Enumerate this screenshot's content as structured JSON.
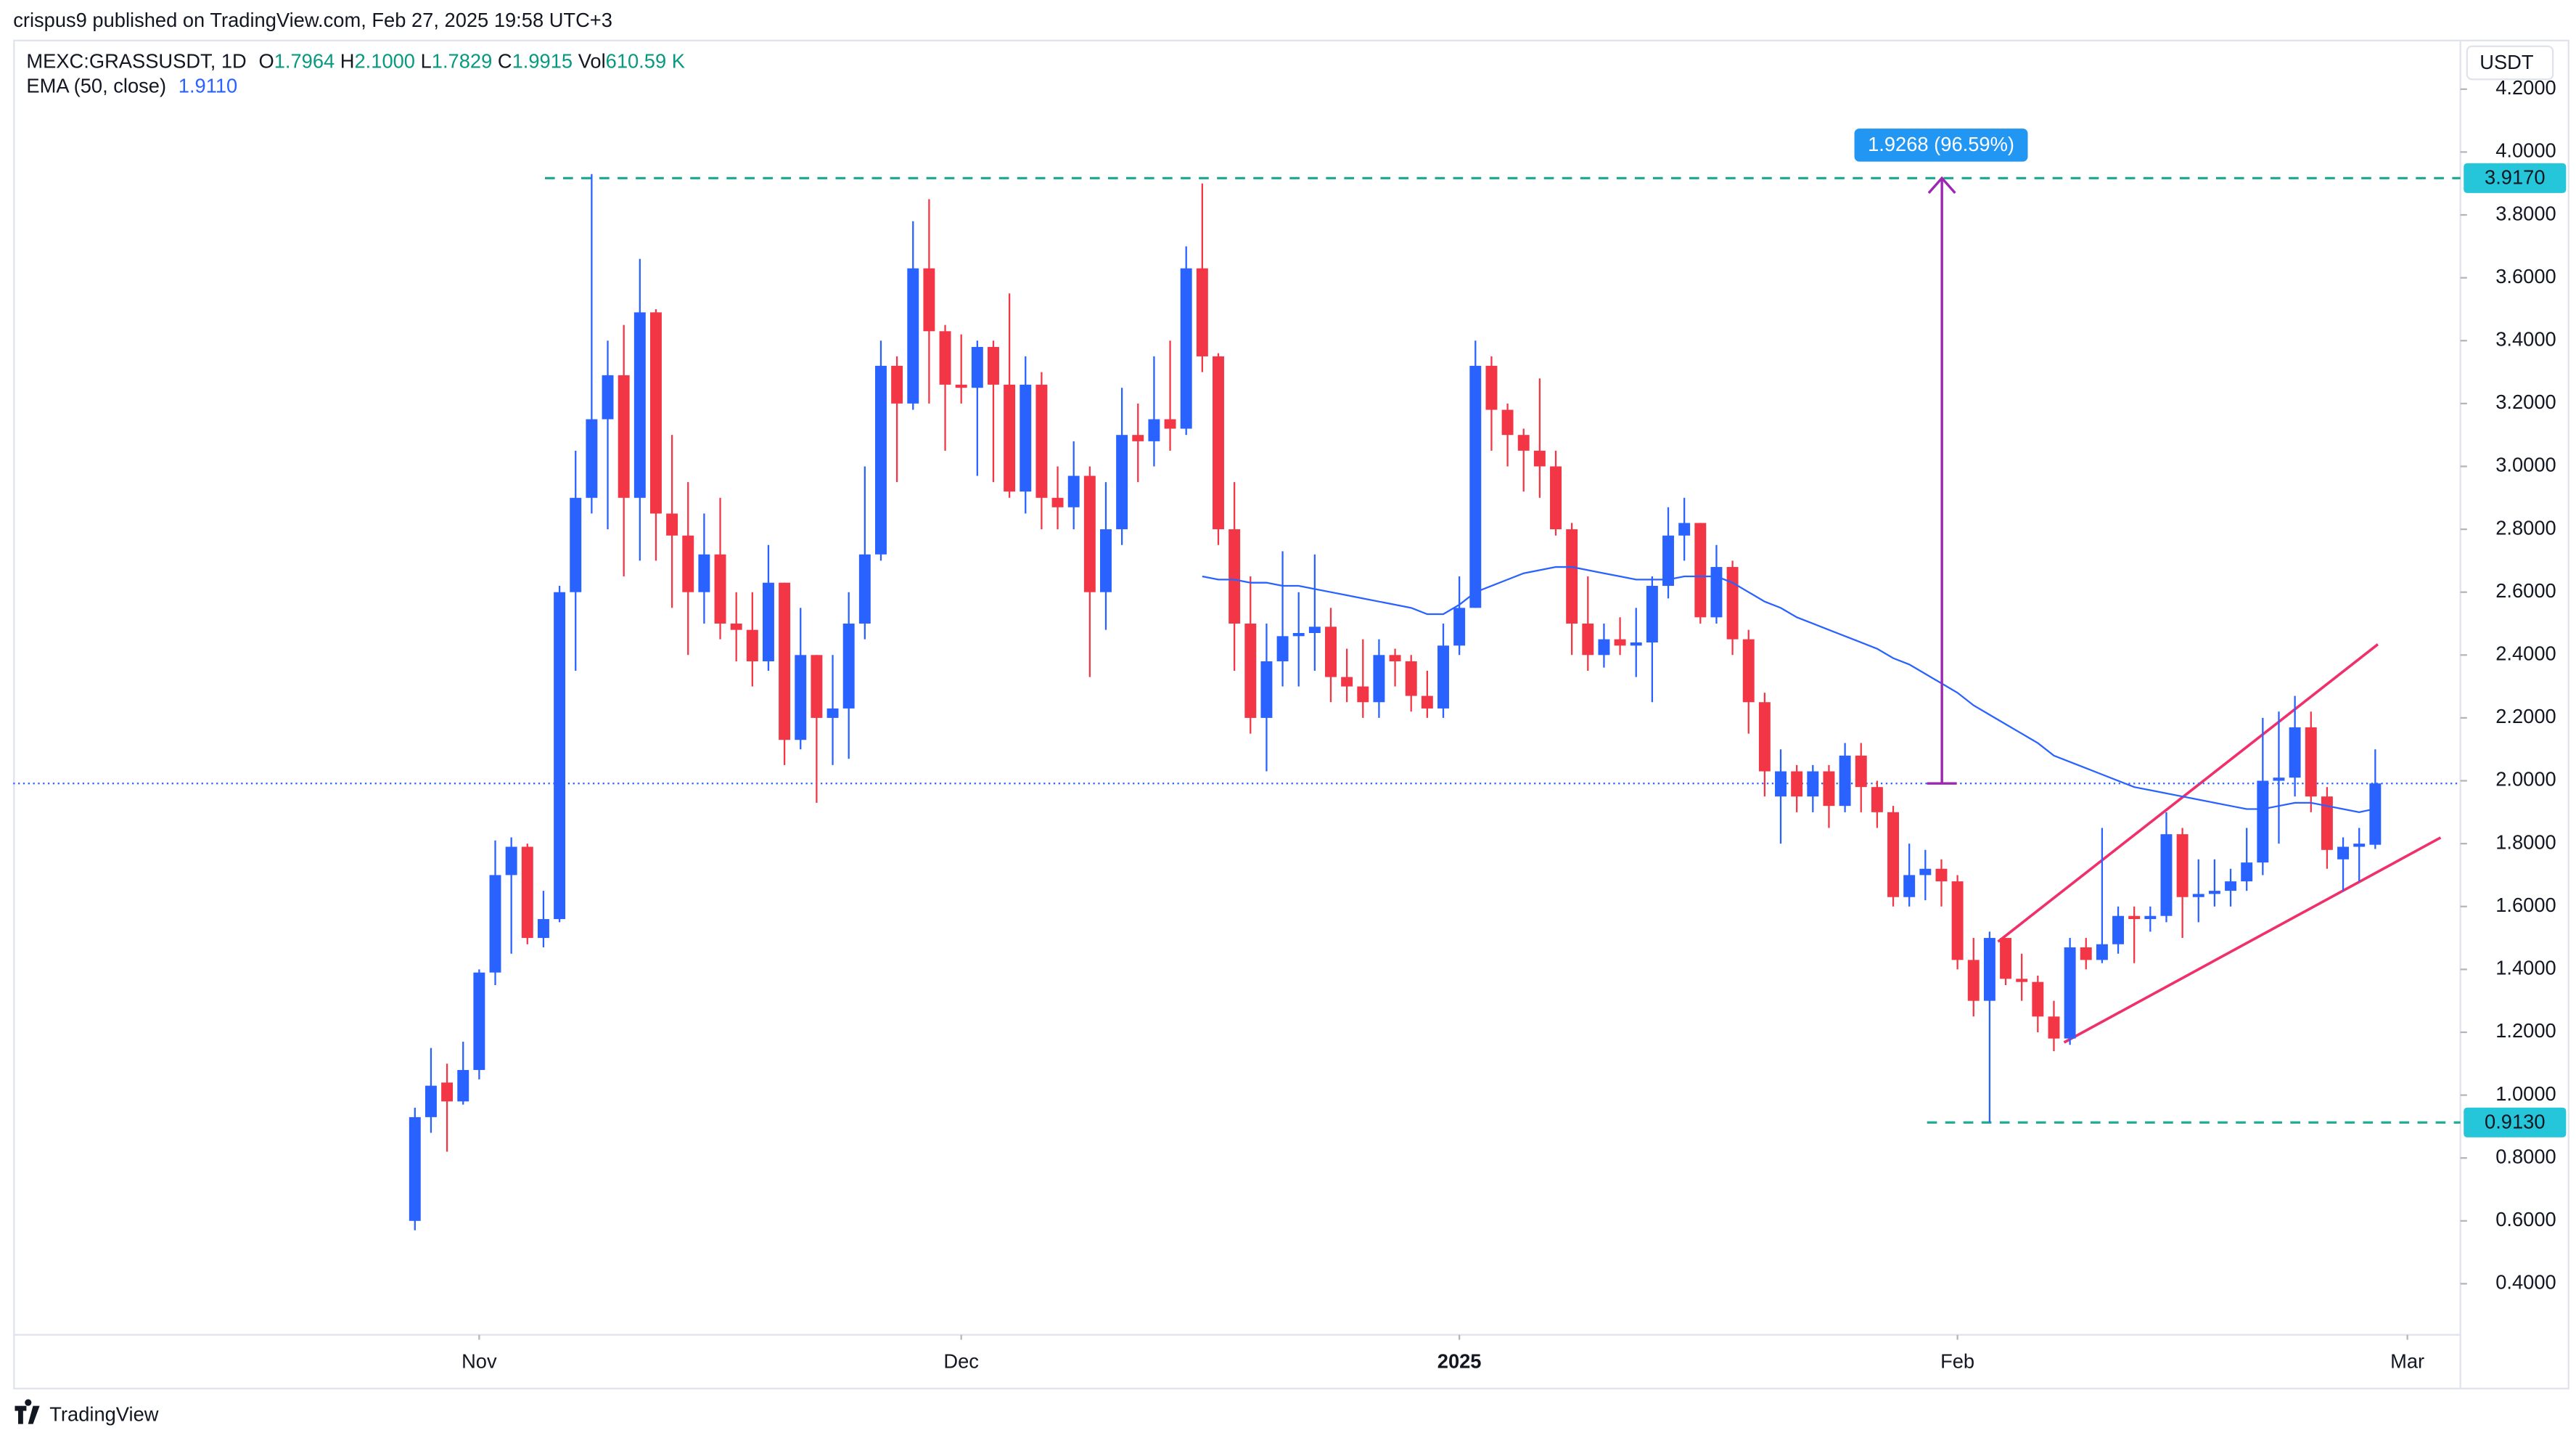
{
  "header": {
    "published": "crispus9 published on TradingView.com, Feb 27, 2025 19:58 UTC+3",
    "symbol": "MEXC:GRASSUSDT, 1D",
    "ohlcv": [
      {
        "key": "O",
        "value": "1.7964"
      },
      {
        "key": "H",
        "value": "2.1000"
      },
      {
        "key": "L",
        "value": "1.7829"
      },
      {
        "key": "C",
        "value": "1.9915"
      },
      {
        "key": "Vol",
        "value": "610.59 K"
      }
    ],
    "indicator": "EMA (50, close)",
    "indicator_value": "1.9110",
    "currency": "USDT"
  },
  "chart_data": {
    "type": "candlestick",
    "up_color": "#2962ff",
    "down_color": "#f23645",
    "open": [
      0.6,
      0.93,
      1.04,
      0.98,
      1.08,
      1.39,
      1.7,
      1.79,
      1.5,
      1.56,
      2.6,
      2.9,
      3.15,
      3.29,
      2.9,
      3.49,
      2.85,
      2.78,
      2.6,
      2.72,
      2.5,
      2.48,
      2.38,
      2.63,
      2.13,
      2.4,
      2.2,
      2.23,
      2.5,
      2.72,
      3.32,
      3.2,
      3.63,
      3.43,
      3.26,
      3.25,
      3.38,
      3.26,
      2.92,
      3.26,
      2.9,
      2.87,
      2.97,
      2.6,
      2.8,
      3.1,
      3.08,
      3.15,
      3.12,
      3.63,
      3.35,
      2.8,
      2.5,
      2.2,
      2.38,
      2.46,
      2.47,
      2.49,
      2.33,
      2.3,
      2.25,
      2.4,
      2.38,
      2.27,
      2.23,
      2.43,
      2.55,
      3.32,
      3.18,
      3.1,
      3.05,
      3.0,
      2.8,
      2.5,
      2.4,
      2.45,
      2.43,
      2.44,
      2.62,
      2.78,
      2.82,
      2.52,
      2.68,
      2.45,
      2.25,
      1.95,
      2.03,
      1.95,
      2.03,
      1.92,
      2.08,
      1.98,
      1.9,
      1.63,
      1.7,
      1.72,
      1.68,
      1.43,
      1.3,
      1.5,
      1.37,
      1.36,
      1.25,
      1.18,
      1.47,
      1.43,
      1.48,
      1.57,
      1.56,
      1.57,
      1.83,
      1.63,
      1.64,
      1.65,
      1.68,
      1.74,
      2.0,
      2.01,
      2.17,
      1.95,
      1.75,
      1.79,
      1.7964
    ],
    "high": [
      0.96,
      1.15,
      1.1,
      1.17,
      1.4,
      1.81,
      1.82,
      1.8,
      1.65,
      2.62,
      3.05,
      3.93,
      3.4,
      3.45,
      3.66,
      3.5,
      3.1,
      2.95,
      2.85,
      2.9,
      2.6,
      2.6,
      2.75,
      2.63,
      2.55,
      2.4,
      2.4,
      2.6,
      3.0,
      3.4,
      3.35,
      3.78,
      3.85,
      3.45,
      3.42,
      3.4,
      3.4,
      3.55,
      3.35,
      3.3,
      3.0,
      3.08,
      3.0,
      2.95,
      3.25,
      3.2,
      3.35,
      3.4,
      3.7,
      3.9,
      3.36,
      2.95,
      2.65,
      2.5,
      2.73,
      2.6,
      2.72,
      2.55,
      2.42,
      2.45,
      2.45,
      2.42,
      2.4,
      2.35,
      2.5,
      2.65,
      3.4,
      3.35,
      3.2,
      3.12,
      3.28,
      3.05,
      2.82,
      2.65,
      2.5,
      2.52,
      2.55,
      2.65,
      2.87,
      2.9,
      2.82,
      2.75,
      2.7,
      2.48,
      2.28,
      2.1,
      2.05,
      2.05,
      2.05,
      2.12,
      2.12,
      2.0,
      1.92,
      1.8,
      1.78,
      1.75,
      1.7,
      1.5,
      1.52,
      1.5,
      1.45,
      1.38,
      1.3,
      1.5,
      1.5,
      1.85,
      1.6,
      1.6,
      1.6,
      1.9,
      1.85,
      1.75,
      1.75,
      1.72,
      1.85,
      2.2,
      2.22,
      2.27,
      2.22,
      1.98,
      1.82,
      1.85,
      2.1
    ],
    "low": [
      0.57,
      0.88,
      0.82,
      0.97,
      1.05,
      1.35,
      1.45,
      1.48,
      1.47,
      1.55,
      2.35,
      2.85,
      2.8,
      2.65,
      2.7,
      2.7,
      2.55,
      2.4,
      2.5,
      2.45,
      2.38,
      2.3,
      2.35,
      2.05,
      2.1,
      1.93,
      2.05,
      2.07,
      2.45,
      2.7,
      2.95,
      3.18,
      3.2,
      3.05,
      3.2,
      2.97,
      2.95,
      2.9,
      2.85,
      2.8,
      2.8,
      2.8,
      2.33,
      2.48,
      2.75,
      2.95,
      3.0,
      3.05,
      3.1,
      3.3,
      2.75,
      2.35,
      2.15,
      2.03,
      2.3,
      2.3,
      2.35,
      2.25,
      2.25,
      2.2,
      2.2,
      2.3,
      2.22,
      2.2,
      2.2,
      2.4,
      2.55,
      3.05,
      3.0,
      2.92,
      2.9,
      2.78,
      2.4,
      2.35,
      2.36,
      2.4,
      2.33,
      2.25,
      2.58,
      2.7,
      2.5,
      2.5,
      2.4,
      2.15,
      1.95,
      1.8,
      1.9,
      1.9,
      1.85,
      1.9,
      1.9,
      1.85,
      1.6,
      1.6,
      1.62,
      1.6,
      1.4,
      1.25,
      0.913,
      1.35,
      1.3,
      1.2,
      1.14,
      1.16,
      1.4,
      1.42,
      1.45,
      1.42,
      1.52,
      1.55,
      1.5,
      1.55,
      1.6,
      1.6,
      1.65,
      1.7,
      1.8,
      1.95,
      1.9,
      1.72,
      1.65,
      1.68,
      1.7829
    ],
    "close": [
      0.93,
      1.03,
      0.98,
      1.08,
      1.39,
      1.7,
      1.79,
      1.5,
      1.56,
      2.6,
      2.9,
      3.15,
      3.29,
      2.9,
      3.49,
      2.85,
      2.78,
      2.6,
      2.72,
      2.5,
      2.48,
      2.38,
      2.63,
      2.13,
      2.4,
      2.2,
      2.23,
      2.5,
      2.72,
      3.32,
      3.2,
      3.63,
      3.43,
      3.26,
      3.25,
      3.38,
      3.26,
      2.92,
      3.26,
      2.9,
      2.87,
      2.97,
      2.6,
      2.8,
      3.1,
      3.08,
      3.15,
      3.12,
      3.63,
      3.35,
      2.8,
      2.5,
      2.2,
      2.38,
      2.46,
      2.47,
      2.49,
      2.33,
      2.3,
      2.25,
      2.4,
      2.38,
      2.27,
      2.23,
      2.43,
      2.55,
      3.32,
      3.18,
      3.1,
      3.05,
      3.0,
      2.8,
      2.5,
      2.4,
      2.45,
      2.43,
      2.44,
      2.62,
      2.78,
      2.82,
      2.52,
      2.68,
      2.45,
      2.25,
      2.03,
      2.03,
      1.95,
      2.03,
      1.92,
      2.08,
      1.98,
      1.9,
      1.63,
      1.7,
      1.72,
      1.68,
      1.43,
      1.3,
      1.5,
      1.37,
      1.36,
      1.25,
      1.18,
      1.47,
      1.43,
      1.48,
      1.57,
      1.56,
      1.57,
      1.83,
      1.63,
      1.64,
      1.65,
      1.68,
      1.74,
      2.0,
      2.01,
      2.17,
      1.95,
      1.78,
      1.79,
      1.8,
      1.9915
    ],
    "ema": {
      "color": "#2962ff",
      "values": [
        null,
        null,
        null,
        null,
        null,
        null,
        null,
        null,
        null,
        null,
        null,
        null,
        null,
        null,
        null,
        null,
        null,
        null,
        null,
        null,
        null,
        null,
        null,
        null,
        null,
        null,
        null,
        null,
        null,
        null,
        null,
        null,
        null,
        null,
        null,
        null,
        null,
        null,
        null,
        null,
        null,
        null,
        null,
        null,
        null,
        null,
        null,
        null,
        null,
        2.65,
        2.64,
        2.64,
        2.63,
        2.63,
        2.62,
        2.62,
        2.61,
        2.6,
        2.59,
        2.58,
        2.57,
        2.56,
        2.55,
        2.53,
        2.53,
        2.56,
        2.6,
        2.62,
        2.64,
        2.66,
        2.67,
        2.68,
        2.68,
        2.67,
        2.66,
        2.65,
        2.64,
        2.64,
        2.64,
        2.65,
        2.65,
        2.65,
        2.63,
        2.6,
        2.57,
        2.55,
        2.52,
        2.5,
        2.48,
        2.46,
        2.44,
        2.42,
        2.39,
        2.37,
        2.34,
        2.31,
        2.28,
        2.24,
        2.21,
        2.18,
        2.15,
        2.12,
        2.08,
        2.06,
        2.04,
        2.02,
        2.0,
        1.98,
        1.97,
        1.96,
        1.95,
        1.94,
        1.93,
        1.92,
        1.91,
        1.91,
        1.92,
        1.93,
        1.93,
        1.92,
        1.91,
        1.9,
        1.911
      ]
    },
    "xlim": [
      -25,
      127.3
    ],
    "xticks": [
      {
        "value": 4,
        "label": "Nov"
      },
      {
        "value": 34,
        "label": "Dec"
      },
      {
        "value": 65,
        "label": "2025"
      },
      {
        "value": 96,
        "label": "Feb"
      },
      {
        "value": 124,
        "label": "Mar"
      }
    ],
    "ylim": [
      0.2375,
      4.3784
    ],
    "yticks": [
      {
        "value": 4.2,
        "label": "4.2000"
      },
      {
        "value": 4.0,
        "label": "4.0000"
      },
      {
        "value": 3.8,
        "label": "3.8000"
      },
      {
        "value": 3.6,
        "label": "3.6000"
      },
      {
        "value": 3.4,
        "label": "3.4000"
      },
      {
        "value": 3.2,
        "label": "3.2000"
      },
      {
        "value": 3.0,
        "label": "3.0000"
      },
      {
        "value": 2.8,
        "label": "2.8000"
      },
      {
        "value": 2.6,
        "label": "2.6000"
      },
      {
        "value": 2.4,
        "label": "2.4000"
      },
      {
        "value": 2.2,
        "label": "2.2000"
      },
      {
        "value": 2.0,
        "label": "2.0000"
      },
      {
        "value": 1.8,
        "label": "1.8000"
      },
      {
        "value": 1.6,
        "label": "1.6000"
      },
      {
        "value": 1.4,
        "label": "1.4000"
      },
      {
        "value": 1.2,
        "label": "1.2000"
      },
      {
        "value": 1.0,
        "label": "1.0000"
      },
      {
        "value": 0.8,
        "label": "0.8000"
      },
      {
        "value": 0.6,
        "label": "0.6000"
      },
      {
        "value": 0.4,
        "label": "0.4000"
      }
    ],
    "grid": false,
    "levels": [
      {
        "value": 3.917,
        "label": "3.9170"
      },
      {
        "value": 0.913,
        "label": "0.9130"
      }
    ],
    "level_color": "#22ab94",
    "measure": {
      "label": "1.9268 (96.59%)",
      "color": "#9c27b0"
    }
  },
  "footer": "TradingView"
}
